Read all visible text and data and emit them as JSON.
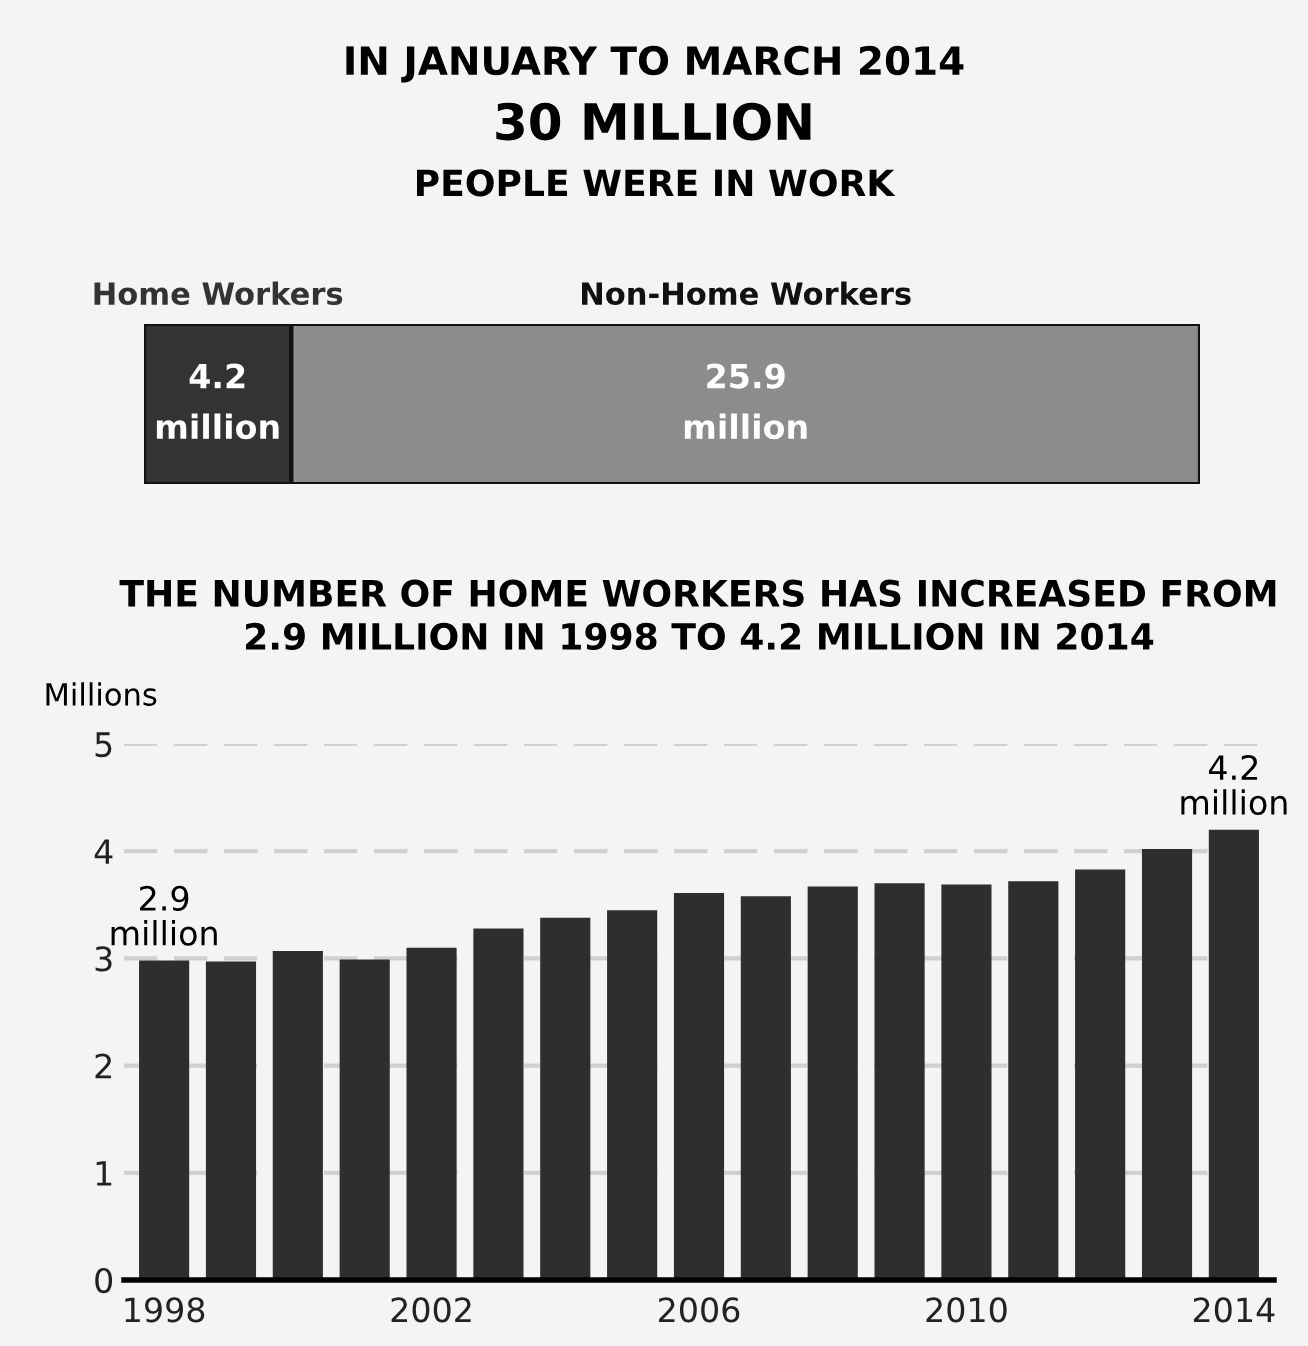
{
  "chart_data": [
    {
      "type": "bar",
      "orientation": "horizontal",
      "stacked": true,
      "title": "IN JANUARY TO MARCH 2014",
      "subtitle": "30 MILLION",
      "annotations": [
        "PEOPLE WERE IN WORK",
        "million",
        "million"
      ],
      "categories": [
        null
      ],
      "legend": false,
      "series": [
        {
          "name": "Home Workers",
          "color": "#333333",
          "values": [
            4.2
          ],
          "value_labels": [
            "4.2"
          ]
        },
        {
          "name": "Non-Home Workers",
          "color": "#8c8c8c",
          "values": [
            25.9
          ],
          "value_labels": [
            "25.9"
          ]
        }
      ]
    },
    {
      "type": "bar",
      "title": "THE NUMBER OF HOME WORKERS HAS INCREASED FROM\n2.9 MILLION IN 1998 TO 4.2 MILLION IN 2014",
      "ylabel": "Millions",
      "categories": [
        "1998",
        null,
        null,
        null,
        "2002",
        null,
        null,
        null,
        "2006",
        null,
        null,
        null,
        "2010",
        null,
        null,
        null,
        "2014"
      ],
      "values": [
        2.98,
        2.97,
        3.07,
        2.99,
        3.1,
        3.28,
        3.38,
        3.45,
        3.61,
        3.58,
        3.67,
        3.7,
        3.69,
        3.72,
        3.83,
        4.02,
        4.2
      ],
      "color": "#2e2e2e",
      "ylim": [
        0,
        5
      ],
      "yticks": [
        0,
        1,
        2,
        3,
        4,
        5
      ],
      "grid": "y",
      "legend": false,
      "annotations": [
        {
          "text": "2.9\nmillion",
          "x": "1998",
          "y": 2.98
        },
        {
          "text": "4.2\nmillion",
          "x": "2014",
          "y": 4.2
        }
      ]
    }
  ]
}
